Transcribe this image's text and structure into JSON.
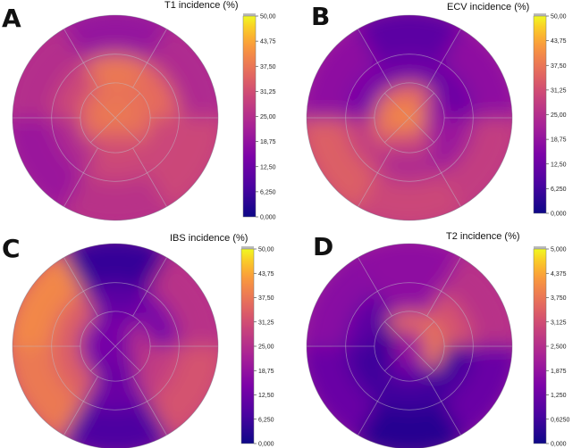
{
  "chart_data": [
    {
      "type": "heatmap",
      "subtype": "polar-bullseye",
      "panel_label": "A",
      "colorbar_title": "T1 incidence (%)",
      "ticks": [
        "0,000",
        "6,250",
        "12,50",
        "18,75",
        "25,00",
        "31,25",
        "37,50",
        "43,75",
        "50,00"
      ],
      "vmin": 0,
      "vmax": 50,
      "ring_values": [
        [
          19,
          24,
          30,
          26,
          20,
          25
        ],
        [
          38,
          36,
          30,
          30,
          24,
          30
        ],
        [
          37,
          37,
          32,
          37
        ],
        [
          38
        ]
      ]
    },
    {
      "type": "heatmap",
      "subtype": "polar-bullseye",
      "panel_label": "B",
      "colorbar_title": "ECV incidence (%)",
      "ticks": [
        "0,000",
        "6,250",
        "12,50",
        "18,75",
        "25,00",
        "31,25",
        "37,50",
        "43,75",
        "50,00"
      ],
      "vmin": 0,
      "vmax": 50,
      "ring_values": [
        [
          10,
          18,
          28,
          30,
          34,
          18
        ],
        [
          13,
          12,
          20,
          24,
          28,
          14
        ],
        [
          36,
          20,
          30,
          38
        ],
        [
          40
        ]
      ]
    },
    {
      "type": "heatmap",
      "subtype": "polar-bullseye",
      "panel_label": "C",
      "colorbar_title": "IBS incidence (%)",
      "ticks": [
        "0,000",
        "6,250",
        "12,50",
        "18,75",
        "25,00",
        "31,25",
        "37,50",
        "43,75",
        "50,00"
      ],
      "vmin": 0,
      "vmax": 50,
      "ring_values": [
        [
          5,
          26,
          32,
          8,
          38,
          40
        ],
        [
          10,
          14,
          28,
          12,
          34,
          34
        ],
        [
          14,
          26,
          12,
          14
        ],
        [
          14
        ]
      ]
    },
    {
      "type": "heatmap",
      "subtype": "polar-bullseye",
      "panel_label": "D",
      "colorbar_title": "T2 incidence (%)",
      "ticks": [
        "0,000",
        "0,6250",
        "1,250",
        "1,875",
        "2,500",
        "3,125",
        "3,750",
        "4,375",
        "5,000"
      ],
      "vmin": 0,
      "vmax": 5,
      "ring_values": [
        [
          1.8,
          2.6,
          1.2,
          0.3,
          1.2,
          1.7
        ],
        [
          1.8,
          3.2,
          0.6,
          0.6,
          0.6,
          1.0
        ],
        [
          3.6,
          3.8,
          1.2,
          0.5
        ],
        [
          2.0
        ]
      ]
    }
  ]
}
